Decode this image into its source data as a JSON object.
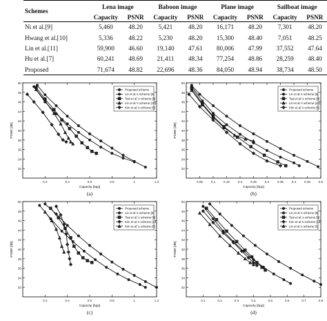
{
  "table": {
    "header_schemes": "Schemes",
    "images": [
      "Lena image",
      "Baboon image",
      "Plane image",
      "Sailboat image"
    ],
    "subheaders": [
      "Capacity",
      "PSNR"
    ],
    "rows": [
      {
        "scheme": "Ni et al.[9]",
        "values": [
          "5,460",
          "48.20",
          "5,421",
          "48.20",
          "16,171",
          "48.20",
          "7,301",
          "48.20"
        ]
      },
      {
        "scheme": "Hwang et al.[10]",
        "values": [
          "5,336",
          "48.22",
          "5,230",
          "48.20",
          "15,300",
          "48.40",
          "7,051",
          "48.25"
        ]
      },
      {
        "scheme": "Lin et al.[11]",
        "values": [
          "59,900",
          "46.60",
          "19,140",
          "47.61",
          "80,006",
          "47.99",
          "37,552",
          "47.64"
        ]
      },
      {
        "scheme": "Hu et al.[7]",
        "values": [
          "60,241",
          "48.69",
          "21,411",
          "48.34",
          "77,254",
          "48.86",
          "28,259",
          "48.40"
        ]
      },
      {
        "scheme": "Proposed",
        "values": [
          "71,674",
          "48.82",
          "22,696",
          "48.36",
          "84,050",
          "48.94",
          "38,734",
          "48.50"
        ]
      }
    ]
  },
  "chart_data": [
    {
      "type": "line",
      "panel": "(a)",
      "xlabel": "Capacity [bpp]",
      "ylabel": "PSNR [dB]",
      "xlim": [
        0.0,
        1.2
      ],
      "ylim": [
        30,
        50
      ],
      "xticks": [
        "0.2",
        "0.4",
        "0.6",
        "0.8",
        "1",
        "1.2"
      ],
      "yticks": [
        "32",
        "34",
        "36",
        "38",
        "40",
        "42",
        "44",
        "46",
        "48",
        "50"
      ],
      "legend_position": "top-right",
      "series": [
        {
          "name": "Proposed scheme",
          "marker": "circle",
          "points": [
            [
              0.13,
              49.5
            ],
            [
              0.2,
              47.5
            ],
            [
              0.3,
              45.2
            ],
            [
              0.4,
              43.0
            ],
            [
              0.5,
              41.0
            ],
            [
              0.6,
              39.3
            ],
            [
              0.7,
              37.8
            ],
            [
              0.8,
              36.3
            ],
            [
              0.9,
              34.8
            ],
            [
              1.0,
              33.5
            ],
            [
              1.1,
              32.3
            ]
          ]
        },
        {
          "name": "Lin et al.'s scheme [8]",
          "marker": "circle",
          "points": [
            [
              0.1,
              49.2
            ],
            [
              0.2,
              46.0
            ],
            [
              0.3,
              43.5
            ],
            [
              0.4,
              41.4
            ],
            [
              0.5,
              39.6
            ],
            [
              0.6,
              38.0
            ],
            [
              0.7,
              36.5
            ],
            [
              0.8,
              35.2
            ],
            [
              0.9,
              34.2
            ],
            [
              1.0,
              33.4
            ]
          ]
        },
        {
          "name": "Tsai et al.'s scheme [9]",
          "marker": "square",
          "points": [
            [
              0.12,
              49.0
            ],
            [
              0.2,
              46.6
            ],
            [
              0.28,
              44.4
            ],
            [
              0.35,
              42.2
            ],
            [
              0.42,
              40.4
            ],
            [
              0.48,
              38.8
            ],
            [
              0.53,
              37.4
            ],
            [
              0.58,
              36.4
            ],
            [
              0.62,
              35.6
            ],
            [
              0.66,
              35.2
            ]
          ]
        },
        {
          "name": "Lin et al.'s scheme [10]",
          "marker": "triangle",
          "points": [
            [
              0.12,
              48.6
            ],
            [
              0.2,
              46.2
            ],
            [
              0.28,
              43.6
            ],
            [
              0.34,
              41.4
            ],
            [
              0.38,
              39.6
            ],
            [
              0.41,
              38.4
            ],
            [
              0.43,
              37.6
            ],
            [
              0.45,
              37.2
            ]
          ]
        },
        {
          "name": "Kim et al.'s scheme [5]",
          "marker": "diamond",
          "points": [
            [
              0.04,
              47.6
            ],
            [
              0.1,
              46.0
            ],
            [
              0.18,
              43.8
            ],
            [
              0.26,
              41.2
            ],
            [
              0.32,
              39.2
            ],
            [
              0.36,
              38.0
            ],
            [
              0.39,
              37.6
            ]
          ]
        }
      ]
    },
    {
      "type": "line",
      "panel": "(b)",
      "xlabel": "Capacity [bpp]",
      "ylabel": "PSNR [dB]",
      "xlim": [
        0.0,
        0.5
      ],
      "ylim": [
        30,
        50
      ],
      "xticks": [
        "0.05",
        "0.1",
        "0.15",
        "0.2",
        "0.25",
        "0.3",
        "0.35",
        "0.4",
        "0.45",
        "0.5"
      ],
      "yticks": [
        "32",
        "34",
        "36",
        "38",
        "40",
        "42",
        "44",
        "46",
        "48",
        "50"
      ],
      "legend_position": "top-right",
      "series": [
        {
          "name": "Proposed scheme",
          "marker": "circle",
          "points": [
            [
              0.02,
              49.5
            ],
            [
              0.05,
              47.6
            ],
            [
              0.1,
              45.2
            ],
            [
              0.15,
              43.0
            ],
            [
              0.2,
              41.0
            ],
            [
              0.25,
              39.3
            ],
            [
              0.3,
              37.7
            ],
            [
              0.35,
              36.2
            ],
            [
              0.4,
              34.8
            ],
            [
              0.45,
              33.5
            ],
            [
              0.49,
              32.4
            ]
          ]
        },
        {
          "name": "Lin et al.'s scheme [8]",
          "marker": "circle",
          "points": [
            [
              0.02,
              49.2
            ],
            [
              0.06,
              46.2
            ],
            [
              0.1,
              43.6
            ],
            [
              0.15,
              41.2
            ],
            [
              0.2,
              39.2
            ],
            [
              0.25,
              37.4
            ],
            [
              0.3,
              35.8
            ],
            [
              0.35,
              34.4
            ],
            [
              0.4,
              33.2
            ],
            [
              0.42,
              32.6
            ]
          ]
        },
        {
          "name": "Tsai et al.'s scheme [9]",
          "marker": "square",
          "points": [
            [
              0.02,
              48.8
            ],
            [
              0.06,
              45.6
            ],
            [
              0.1,
              43.0
            ],
            [
              0.14,
              40.8
            ],
            [
              0.19,
              38.6
            ],
            [
              0.24,
              36.6
            ],
            [
              0.29,
              34.8
            ],
            [
              0.34,
              33.4
            ],
            [
              0.37,
              32.6
            ]
          ]
        },
        {
          "name": "Lin et al.'s scheme [10]",
          "marker": "triangle",
          "points": [
            [
              0.02,
              48.4
            ],
            [
              0.06,
              45.4
            ],
            [
              0.1,
              42.8
            ],
            [
              0.14,
              40.6
            ],
            [
              0.18,
              39.0
            ],
            [
              0.22,
              38.2
            ],
            [
              0.25,
              37.8
            ]
          ]
        },
        {
          "name": "Kim et al.'s scheme [5]",
          "marker": "diamond",
          "points": [
            [
              0.01,
              47.6
            ],
            [
              0.05,
              45.0
            ],
            [
              0.1,
              42.2
            ],
            [
              0.15,
              39.6
            ],
            [
              0.2,
              37.2
            ],
            [
              0.25,
              35.2
            ],
            [
              0.3,
              33.6
            ],
            [
              0.35,
              32.6
            ]
          ]
        }
      ]
    },
    {
      "type": "line",
      "panel": "(c)",
      "xlabel": "Capacity [bpp]",
      "ylabel": "PSNR [dB]",
      "xlim": [
        0.0,
        1.2
      ],
      "ylim": [
        30,
        50
      ],
      "xticks": [
        "0.2",
        "0.4",
        "0.6",
        "0.8",
        "1",
        "1.2"
      ],
      "yticks": [
        "32",
        "34",
        "36",
        "38",
        "40",
        "42",
        "44",
        "46",
        "48",
        "50"
      ],
      "legend_position": "top-right",
      "series": [
        {
          "name": "Proposed scheme",
          "marker": "circle",
          "points": [
            [
              0.2,
              49.5
            ],
            [
              0.3,
              47.4
            ],
            [
              0.4,
              45.0
            ],
            [
              0.5,
              42.8
            ],
            [
              0.6,
              40.8
            ],
            [
              0.7,
              39.0
            ],
            [
              0.8,
              37.3
            ],
            [
              0.9,
              35.8
            ],
            [
              1.0,
              34.5
            ],
            [
              1.1,
              33.2
            ],
            [
              1.2,
              32.0
            ]
          ]
        },
        {
          "name": "Lin et al.'s scheme [8]",
          "marker": "circle",
          "points": [
            [
              0.15,
              49.2
            ],
            [
              0.25,
              46.4
            ],
            [
              0.35,
              43.8
            ],
            [
              0.45,
              41.6
            ],
            [
              0.55,
              39.6
            ],
            [
              0.65,
              37.8
            ],
            [
              0.75,
              36.2
            ],
            [
              0.85,
              34.8
            ],
            [
              0.95,
              33.6
            ],
            [
              1.05,
              32.6
            ],
            [
              1.1,
              32.0
            ]
          ]
        },
        {
          "name": "Tsai et al.'s scheme [9]",
          "marker": "square",
          "points": [
            [
              0.25,
              48.6
            ],
            [
              0.32,
              46.6
            ],
            [
              0.38,
              44.4
            ],
            [
              0.43,
              42.4
            ],
            [
              0.46,
              40.6
            ],
            [
              0.5,
              39.2
            ],
            [
              0.54,
              38.2
            ],
            [
              0.58,
              37.6
            ],
            [
              0.62,
              37.2
            ]
          ]
        },
        {
          "name": "Kim et al.'s scheme [13]",
          "marker": "diamond",
          "points": [
            [
              0.3,
              49.0
            ],
            [
              0.34,
              47.2
            ],
            [
              0.37,
              45.2
            ],
            [
              0.39,
              43.2
            ],
            [
              0.4,
              41.0
            ],
            [
              0.41,
              39.4
            ],
            [
              0.42,
              38.0
            ],
            [
              0.43,
              36.8
            ]
          ]
        },
        {
          "name": "Kim et al.'s scheme [5]",
          "marker": "triangle",
          "points": [
            [
              0.2,
              47.8
            ],
            [
              0.26,
              46.0
            ],
            [
              0.3,
              44.2
            ],
            [
              0.33,
              42.4
            ],
            [
              0.35,
              40.6
            ],
            [
              0.37,
              39.4
            ]
          ]
        }
      ]
    },
    {
      "type": "line",
      "panel": "(d)",
      "xlabel": "Capacity [bpp]",
      "ylabel": "PSNR [dB]",
      "xlim": [
        0.0,
        0.8
      ],
      "ylim": [
        30,
        50
      ],
      "xticks": [
        "0.1",
        "0.2",
        "0.3",
        "0.4",
        "0.5",
        "0.6",
        "0.7",
        "0.8"
      ],
      "yticks": [
        "32",
        "34",
        "36",
        "38",
        "40",
        "42",
        "44",
        "46",
        "48",
        "50"
      ],
      "legend_position": "top-right",
      "series": [
        {
          "name": "Proposed scheme",
          "marker": "circle",
          "points": [
            [
              0.14,
              49.5
            ],
            [
              0.2,
              47.4
            ],
            [
              0.27,
              45.0
            ],
            [
              0.34,
              42.8
            ],
            [
              0.41,
              40.8
            ],
            [
              0.48,
              39.0
            ],
            [
              0.55,
              37.4
            ],
            [
              0.62,
              36.0
            ],
            [
              0.69,
              34.6
            ],
            [
              0.76,
              33.3
            ],
            [
              0.8,
              32.6
            ]
          ]
        },
        {
          "name": "Lin et al.'s scheme [8]",
          "marker": "circle",
          "points": [
            [
              0.1,
              49.0
            ],
            [
              0.16,
              46.4
            ],
            [
              0.22,
              43.8
            ],
            [
              0.28,
              41.6
            ],
            [
              0.34,
              39.6
            ],
            [
              0.4,
              37.8
            ],
            [
              0.46,
              36.2
            ],
            [
              0.52,
              34.8
            ],
            [
              0.58,
              33.6
            ],
            [
              0.62,
              32.8
            ]
          ]
        },
        {
          "name": "Tsai et al.'s scheme [9]",
          "marker": "square",
          "points": [
            [
              0.12,
              48.6
            ],
            [
              0.18,
              46.2
            ],
            [
              0.24,
              43.8
            ],
            [
              0.3,
              41.6
            ],
            [
              0.35,
              39.8
            ],
            [
              0.39,
              38.4
            ],
            [
              0.42,
              37.2
            ],
            [
              0.45,
              36.2
            ],
            [
              0.47,
              35.6
            ]
          ]
        },
        {
          "name": "Kim et al.'s scheme [13]",
          "marker": "diamond",
          "points": [
            [
              0.1,
              48.0
            ],
            [
              0.16,
              45.6
            ],
            [
              0.22,
              43.4
            ],
            [
              0.28,
              41.4
            ],
            [
              0.33,
              39.6
            ],
            [
              0.37,
              38.2
            ],
            [
              0.4,
              37.2
            ],
            [
              0.42,
              36.6
            ]
          ]
        },
        {
          "name": "Lin et al.'s scheme [5]",
          "marker": "triangle",
          "points": [
            [
              0.08,
              47.6
            ],
            [
              0.14,
              45.2
            ],
            [
              0.2,
              42.8
            ],
            [
              0.26,
              40.8
            ],
            [
              0.31,
              39.2
            ],
            [
              0.35,
              38.0
            ],
            [
              0.38,
              37.2
            ],
            [
              0.4,
              36.8
            ]
          ]
        }
      ]
    }
  ]
}
